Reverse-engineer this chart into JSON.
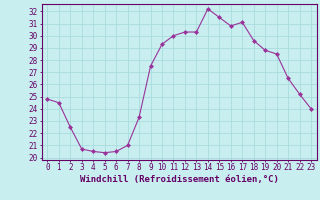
{
  "x": [
    0,
    1,
    2,
    3,
    4,
    5,
    6,
    7,
    8,
    9,
    10,
    11,
    12,
    13,
    14,
    15,
    16,
    17,
    18,
    19,
    20,
    21,
    22,
    23
  ],
  "y": [
    24.8,
    24.5,
    22.5,
    20.7,
    20.5,
    20.4,
    20.5,
    21.0,
    23.3,
    27.5,
    29.3,
    30.0,
    30.3,
    30.3,
    32.2,
    31.5,
    30.8,
    31.1,
    29.6,
    28.8,
    28.5,
    26.5,
    25.2,
    24.0
  ],
  "line_color": "#993399",
  "marker_color": "#993399",
  "bg_color": "#c8eef0",
  "grid_color": "#aadddd",
  "xlabel": "Windchill (Refroidissement éolien,°C)",
  "xlim": [
    -0.5,
    23.5
  ],
  "ylim": [
    19.8,
    32.6
  ],
  "yticks": [
    20,
    21,
    22,
    23,
    24,
    25,
    26,
    27,
    28,
    29,
    30,
    31,
    32
  ],
  "xticks": [
    0,
    1,
    2,
    3,
    4,
    5,
    6,
    7,
    8,
    9,
    10,
    11,
    12,
    13,
    14,
    15,
    16,
    17,
    18,
    19,
    20,
    21,
    22,
    23
  ],
  "tick_label_size": 5.5,
  "xlabel_size": 6.5,
  "axis_color": "#660066",
  "spine_color": "#660066"
}
